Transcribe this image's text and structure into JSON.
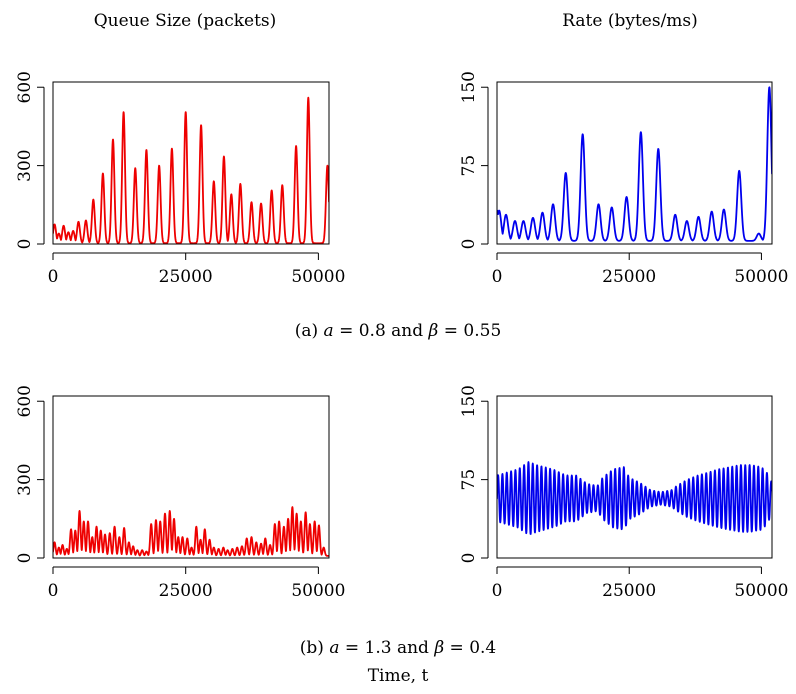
{
  "figure": {
    "column_titles": [
      "Queue Size (packets)",
      "Rate (bytes/ms)"
    ],
    "captions": [
      {
        "label": "(a)",
        "a_sym": "a",
        "eq1": " = 0.8 and ",
        "beta_sym": "β",
        "eq2": " = 0.55"
      },
      {
        "label": "(b)",
        "a_sym": "a",
        "eq1": " = 1.3 and ",
        "beta_sym": "β",
        "eq2": " = 0.4"
      }
    ],
    "xlabel": "Time, t"
  },
  "colors": {
    "queue": "#ee0000",
    "rate": "#0000ee"
  },
  "chart_data": [
    {
      "id": "a-queue",
      "type": "line",
      "title": "Queue Size (packets)",
      "xlim": [
        0,
        52000
      ],
      "ylim": [
        0,
        620
      ],
      "xticks": [
        0,
        25000,
        50000
      ],
      "xtick_labels": [
        "0",
        "25000",
        "50000"
      ],
      "yticks": [
        0,
        300,
        600
      ],
      "ytick_labels": [
        "0",
        "300",
        "600"
      ],
      "series": [
        {
          "color": "#ee0000",
          "mode": "pulses",
          "base": 3,
          "width": 380,
          "peaks": [
            [
              300,
              75
            ],
            [
              1100,
              40
            ],
            [
              2000,
              70
            ],
            [
              2900,
              45
            ],
            [
              3800,
              50
            ],
            [
              4800,
              85
            ],
            [
              6200,
              90
            ],
            [
              7600,
              170
            ],
            [
              9400,
              270
            ],
            [
              11300,
              400
            ],
            [
              13300,
              505
            ],
            [
              15500,
              290
            ],
            [
              17600,
              360
            ],
            [
              20000,
              300
            ],
            [
              22400,
              365
            ],
            [
              25000,
              505
            ],
            [
              27900,
              455
            ],
            [
              30300,
              240
            ],
            [
              32200,
              335
            ],
            [
              33600,
              190
            ],
            [
              35300,
              230
            ],
            [
              37400,
              160
            ],
            [
              39200,
              155
            ],
            [
              41200,
              205
            ],
            [
              43200,
              225
            ],
            [
              45800,
              375
            ],
            [
              48100,
              560
            ],
            [
              51700,
              300
            ]
          ]
        }
      ]
    },
    {
      "id": "a-rate",
      "type": "line",
      "title": "Rate (bytes/ms)",
      "xlim": [
        0,
        52000
      ],
      "ylim": [
        0,
        155
      ],
      "xticks": [
        0,
        25000,
        50000
      ],
      "xtick_labels": [
        "0",
        "25000",
        "50000"
      ],
      "yticks": [
        0,
        75,
        150
      ],
      "ytick_labels": [
        "0",
        "75",
        "150"
      ],
      "series": [
        {
          "color": "#0000ee",
          "mode": "pulses",
          "base": 3,
          "width": 550,
          "peaks": [
            [
              0,
              32
            ],
            [
              400,
              32
            ],
            [
              1700,
              28
            ],
            [
              3400,
              22
            ],
            [
              5000,
              22
            ],
            [
              6800,
              25
            ],
            [
              8600,
              30
            ],
            [
              10600,
              38
            ],
            [
              13000,
              68
            ],
            [
              16200,
              105
            ],
            [
              19200,
              38
            ],
            [
              21700,
              35
            ],
            [
              24500,
              45
            ],
            [
              27200,
              107
            ],
            [
              30500,
              91
            ],
            [
              33700,
              28
            ],
            [
              35900,
              22
            ],
            [
              38100,
              26
            ],
            [
              40600,
              31
            ],
            [
              42900,
              33
            ],
            [
              45800,
              70
            ],
            [
              49500,
              10
            ],
            [
              51500,
              150
            ]
          ]
        }
      ]
    },
    {
      "id": "b-queue",
      "type": "line",
      "title": "Queue Size (packets)",
      "xlim": [
        0,
        52000
      ],
      "ylim": [
        0,
        620
      ],
      "xticks": [
        0,
        25000,
        50000
      ],
      "xtick_labels": [
        "0",
        "25000",
        "50000"
      ],
      "yticks": [
        0,
        300,
        600
      ],
      "ytick_labels": [
        "0",
        "300",
        "600"
      ],
      "series": [
        {
          "color": "#ee0000",
          "mode": "pulses",
          "base": 8,
          "width": 280,
          "peaks": [
            [
              300,
              60
            ],
            [
              1100,
              40
            ],
            [
              1800,
              50
            ],
            [
              2600,
              35
            ],
            [
              3400,
              110
            ],
            [
              4200,
              105
            ],
            [
              5000,
              180
            ],
            [
              5800,
              140
            ],
            [
              6600,
              140
            ],
            [
              7400,
              80
            ],
            [
              8200,
              120
            ],
            [
              9000,
              105
            ],
            [
              9800,
              90
            ],
            [
              10700,
              95
            ],
            [
              11600,
              120
            ],
            [
              12500,
              80
            ],
            [
              13400,
              115
            ],
            [
              14300,
              60
            ],
            [
              15100,
              45
            ],
            [
              15900,
              30
            ],
            [
              16800,
              30
            ],
            [
              17600,
              25
            ],
            [
              18500,
              130
            ],
            [
              19400,
              145
            ],
            [
              20200,
              140
            ],
            [
              21100,
              170
            ],
            [
              22000,
              180
            ],
            [
              22800,
              150
            ],
            [
              23600,
              80
            ],
            [
              24400,
              80
            ],
            [
              25300,
              75
            ],
            [
              26100,
              40
            ],
            [
              27000,
              120
            ],
            [
              27800,
              70
            ],
            [
              28600,
              110
            ],
            [
              29500,
              70
            ],
            [
              30300,
              40
            ],
            [
              31200,
              35
            ],
            [
              32100,
              40
            ],
            [
              32900,
              30
            ],
            [
              33800,
              35
            ],
            [
              34700,
              40
            ],
            [
              35600,
              45
            ],
            [
              36500,
              75
            ],
            [
              37400,
              80
            ],
            [
              38300,
              60
            ],
            [
              39200,
              55
            ],
            [
              40000,
              75
            ],
            [
              40900,
              50
            ],
            [
              41800,
              130
            ],
            [
              42600,
              140
            ],
            [
              43500,
              120
            ],
            [
              44300,
              150
            ],
            [
              45100,
              195
            ],
            [
              45900,
              170
            ],
            [
              46700,
              140
            ],
            [
              47600,
              175
            ],
            [
              48400,
              130
            ],
            [
              49300,
              140
            ],
            [
              50100,
              125
            ],
            [
              51000,
              40
            ]
          ]
        }
      ]
    },
    {
      "id": "b-rate",
      "type": "line",
      "title": "Rate (bytes/ms)",
      "xlim": [
        0,
        52000
      ],
      "ylim": [
        0,
        155
      ],
      "xticks": [
        0,
        25000,
        50000
      ],
      "xtick_labels": [
        "0",
        "25000",
        "50000"
      ],
      "yticks": [
        0,
        75,
        150
      ],
      "ytick_labels": [
        "0",
        "75",
        "150"
      ],
      "series": [
        {
          "color": "#0000ee",
          "mode": "oscillation",
          "period": 820,
          "mean": 57,
          "amplitude_knots": [
            [
              0,
              22
            ],
            [
              2000,
              25
            ],
            [
              4000,
              28
            ],
            [
              6000,
              35
            ],
            [
              7500,
              32
            ],
            [
              9000,
              30
            ],
            [
              11000,
              27
            ],
            [
              13000,
              22
            ],
            [
              15000,
              22
            ],
            [
              17000,
              14
            ],
            [
              19000,
              12
            ],
            [
              20000,
              20
            ],
            [
              22000,
              28
            ],
            [
              24000,
              30
            ],
            [
              25000,
              20
            ],
            [
              27000,
              15
            ],
            [
              29000,
              8
            ],
            [
              31000,
              6
            ],
            [
              33000,
              8
            ],
            [
              34000,
              12
            ],
            [
              36000,
              18
            ],
            [
              38000,
              22
            ],
            [
              40000,
              25
            ],
            [
              42000,
              28
            ],
            [
              44000,
              30
            ],
            [
              46000,
              32
            ],
            [
              48000,
              32
            ],
            [
              50000,
              30
            ],
            [
              51000,
              25
            ],
            [
              52000,
              15
            ]
          ]
        }
      ]
    }
  ]
}
